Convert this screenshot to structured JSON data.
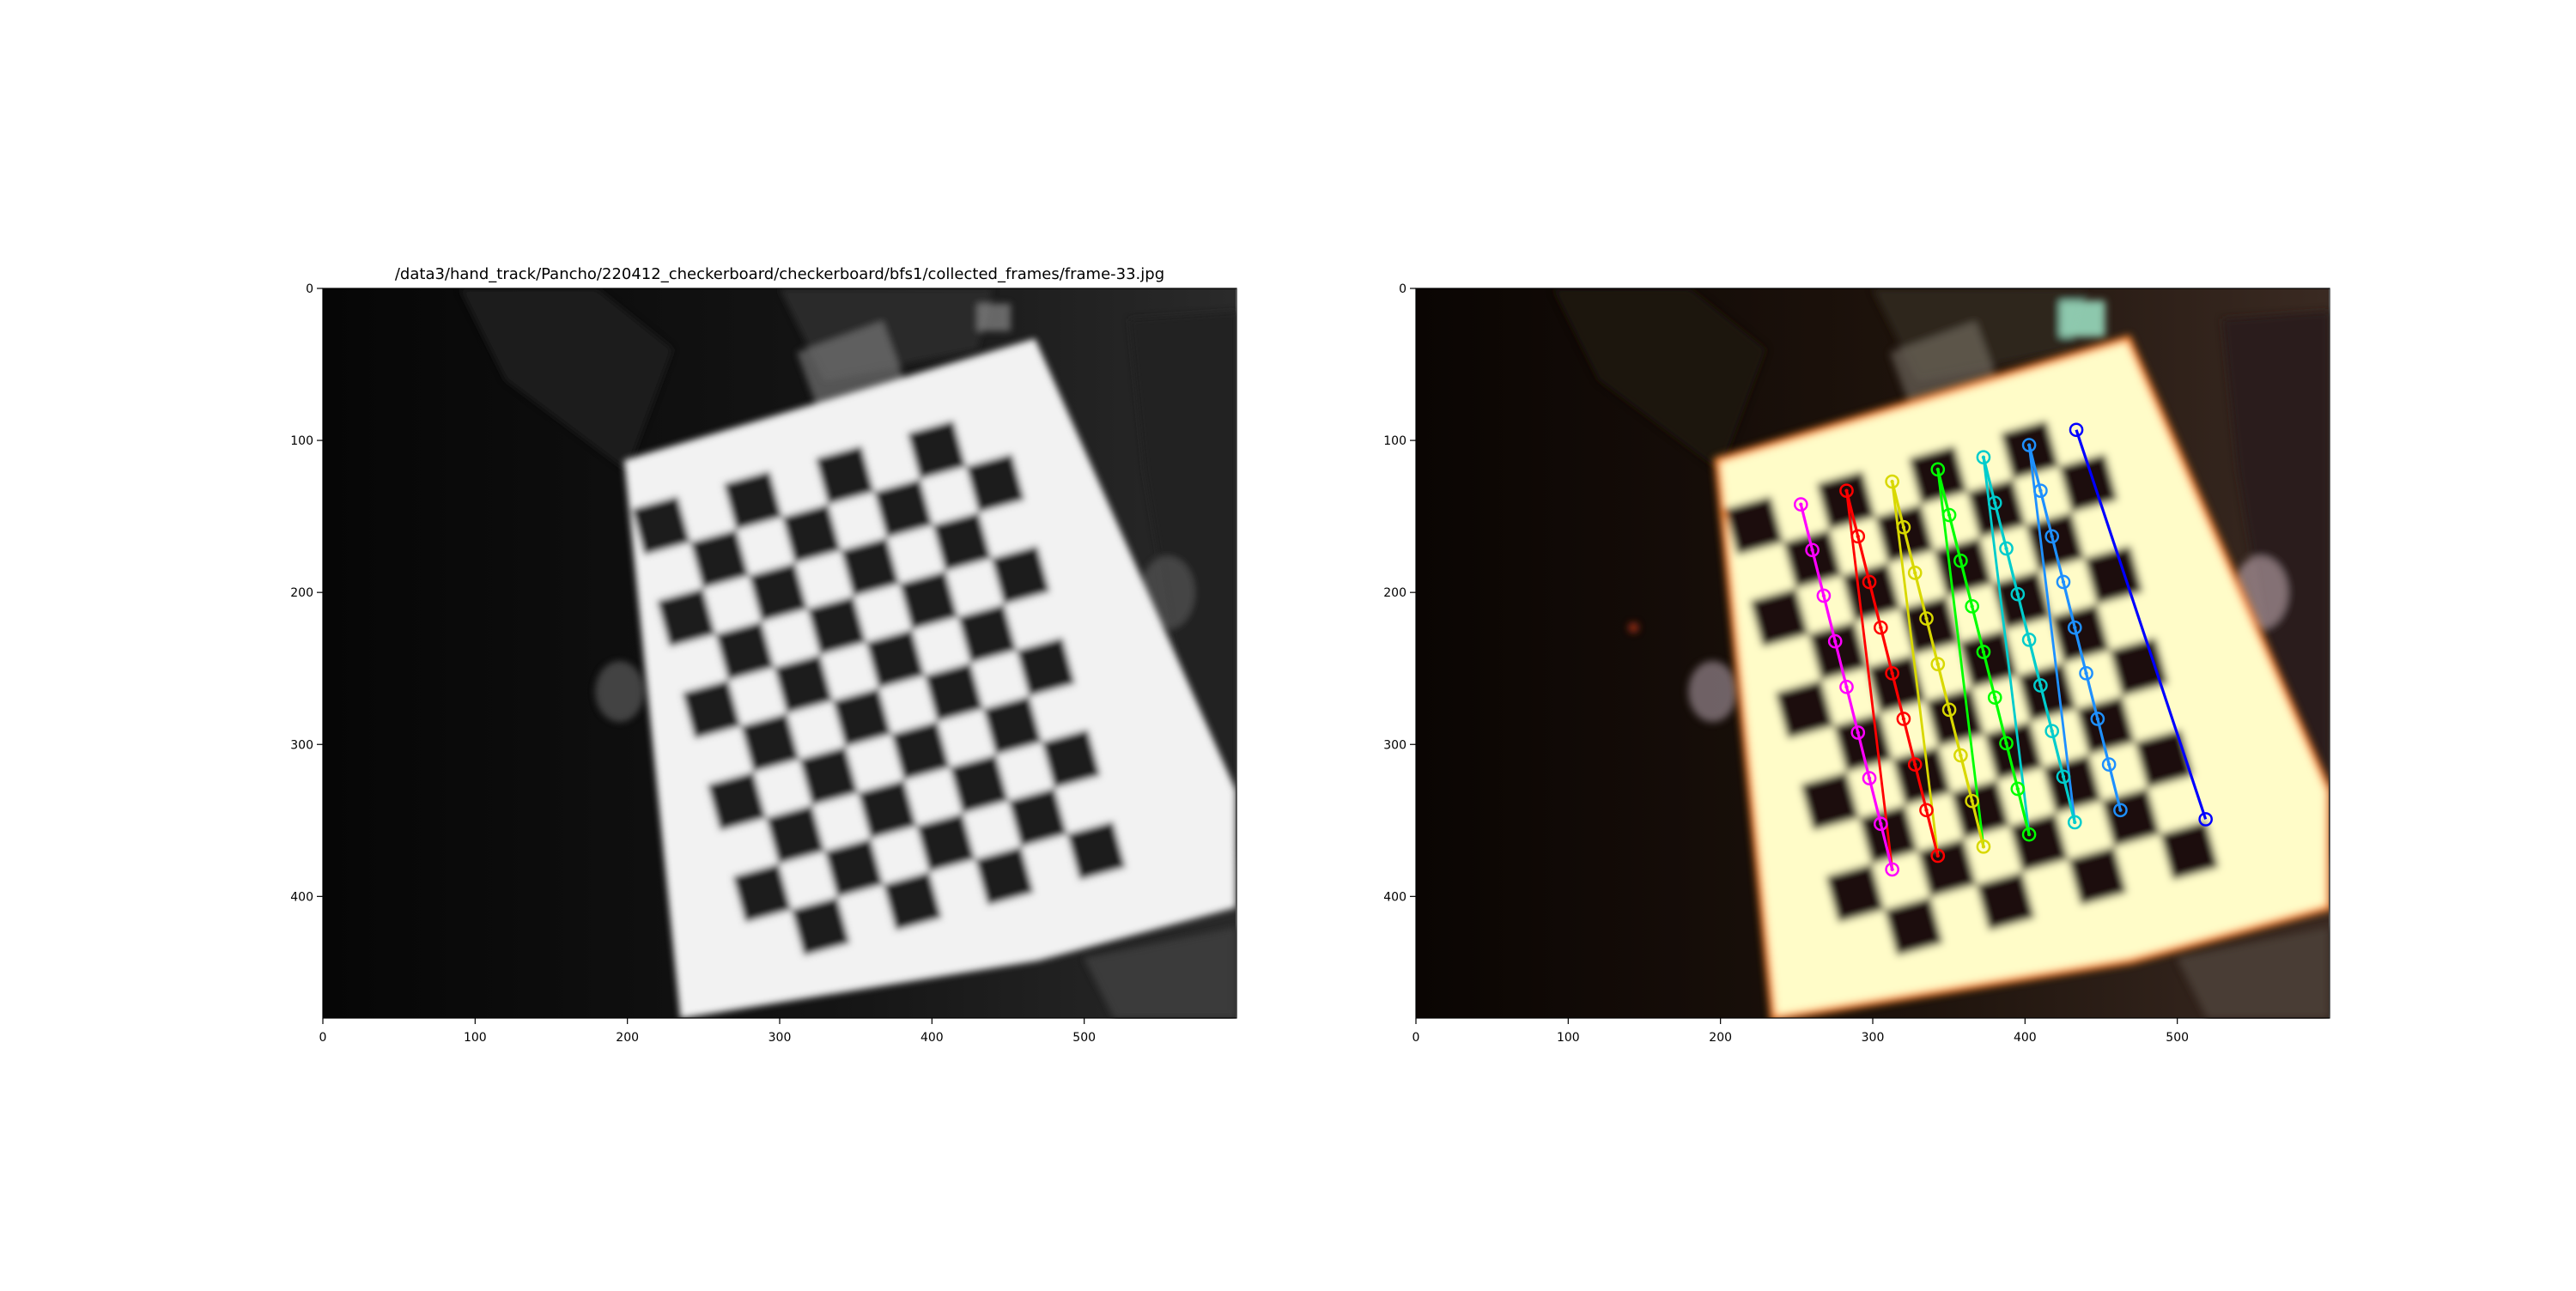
{
  "figure": {
    "title_left": "/data3/hand_track/Pancho/220412_checkerboard/checkerboard/bfs1/collected_frames/frame-33.jpg"
  },
  "chart_data": [
    {
      "type": "image",
      "panel": "left",
      "title": "/data3/hand_track/Pancho/220412_checkerboard/checkerboard/bfs1/collected_frames/frame-33.jpg",
      "xlim": [
        0,
        600
      ],
      "ylim": [
        480,
        0
      ],
      "xticks": [
        0,
        100,
        200,
        300,
        400,
        500
      ],
      "yticks": [
        0,
        100,
        200,
        300,
        400
      ],
      "content": "grayscale photo of a checkerboard calibration target"
    },
    {
      "type": "image",
      "panel": "right",
      "xlim": [
        0,
        600
      ],
      "ylim": [
        480,
        0
      ],
      "xticks": [
        0,
        100,
        200,
        300,
        400,
        500
      ],
      "yticks": [
        0,
        100,
        200,
        300,
        400
      ],
      "content": "color image with detected checkerboard corners drawn",
      "corner_grid": {
        "columns": 6,
        "rows": 9,
        "top_of_columns": [
          [
            253,
            142
          ],
          [
            283,
            133
          ],
          [
            313,
            127
          ],
          [
            343,
            119
          ],
          [
            373,
            111
          ],
          [
            403,
            103
          ]
        ],
        "column_step": [
          7.5,
          30.0
        ],
        "end_markers": [
          [
            434,
            93
          ],
          [
            519,
            349
          ]
        ],
        "colors": [
          "#ff00ff",
          "#ff0000",
          "#d8d800",
          "#00ff00",
          "#00cccc",
          "#1e90ff"
        ],
        "final_color": "#0000ff"
      }
    }
  ]
}
